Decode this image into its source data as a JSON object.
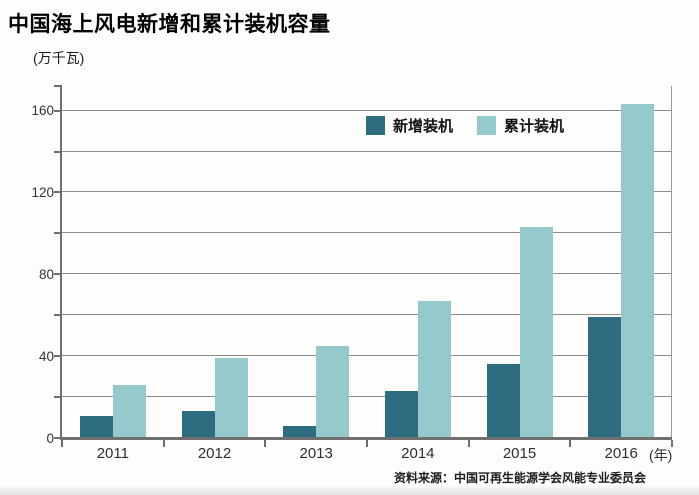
{
  "page": {
    "title": "中国海上风电新增和累计装机容量",
    "unit_label": "(万千瓦)",
    "year_suffix": "(年)",
    "source": "资料来源：中国可再生能源学会风能专业委员会"
  },
  "colors": {
    "new_series": "#2e6c80",
    "cumulative_series": "#95c9cc",
    "gridline": "#8e8e8e",
    "axis": "#6f6f6f",
    "background": "#fdfdfc"
  },
  "chart_data": {
    "type": "bar",
    "title": "中国海上风电新增和累计装机容量",
    "categories": [
      "2011",
      "2012",
      "2013",
      "2014",
      "2015",
      "2016"
    ],
    "series": [
      {
        "name": "新增装机",
        "color": "#2e6c80",
        "values": [
          11,
          13,
          6,
          23,
          36,
          59
        ]
      },
      {
        "name": "累计装机",
        "color": "#95c9cc",
        "values": [
          26,
          39,
          45,
          67,
          103,
          163
        ]
      }
    ],
    "ylabel": "万千瓦",
    "xlabel": "年",
    "ylim": [
      0,
      172
    ],
    "ytick_step": 20,
    "ytick_label_step": 40,
    "ytick_max": 160,
    "grid": true,
    "legend_position": "top-right-inside",
    "source": "资料来源：中国可再生能源学会风能专业委员会"
  }
}
